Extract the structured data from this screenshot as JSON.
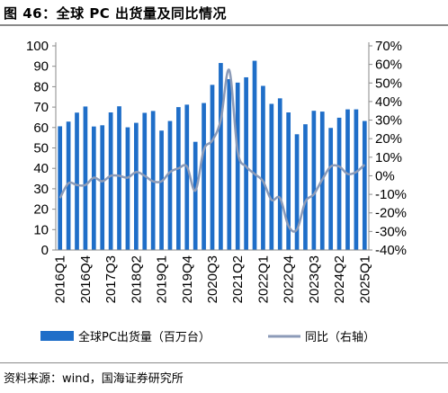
{
  "header": {
    "title": "图 46：全球 PC 出货量及同比情况"
  },
  "footer": {
    "source": "资料来源：wind，国海证券研究所"
  },
  "colors": {
    "bar": "#1f6ec8",
    "line": "#8c9bb8",
    "rule": "#8a8a8a"
  },
  "chart_data": {
    "type": "bar",
    "title": "",
    "xlabel": "",
    "ylabel": "",
    "ylim": [
      0,
      100
    ],
    "y2lim": [
      -40,
      70
    ],
    "y_ticks": [
      "0",
      "10",
      "20",
      "30",
      "40",
      "50",
      "60",
      "70",
      "80",
      "90",
      "100"
    ],
    "y2_ticks": [
      "-40%",
      "-30%",
      "-20%",
      "-10%",
      "0%",
      "10%",
      "20%",
      "30%",
      "40%",
      "50%",
      "60%",
      "70%"
    ],
    "x_tick_labels": [
      "2016Q1",
      "2016Q4",
      "2017Q3",
      "2018Q2",
      "2019Q1",
      "2019Q4",
      "2020Q3",
      "2021Q2",
      "2022Q1",
      "2022Q4",
      "2023Q3",
      "2024Q2",
      "2025Q1"
    ],
    "categories": [
      "2016Q1",
      "2016Q2",
      "2016Q3",
      "2016Q4",
      "2017Q1",
      "2017Q2",
      "2017Q3",
      "2017Q4",
      "2018Q1",
      "2018Q2",
      "2018Q3",
      "2018Q4",
      "2019Q1",
      "2019Q2",
      "2019Q3",
      "2019Q4",
      "2020Q1",
      "2020Q2",
      "2020Q3",
      "2020Q4",
      "2021Q1",
      "2021Q2",
      "2021Q3",
      "2021Q4",
      "2022Q1",
      "2022Q2",
      "2022Q3",
      "2022Q4",
      "2023Q1",
      "2023Q2",
      "2023Q3",
      "2023Q4",
      "2024Q1",
      "2024Q2",
      "2024Q3",
      "2024Q4",
      "2025Q1"
    ],
    "series": [
      {
        "name": "全球PC出货量（百万台）",
        "type": "bar",
        "axis": "left",
        "values": [
          60.6,
          62.9,
          67.3,
          70.3,
          60.5,
          61.1,
          67.4,
          70.4,
          60.1,
          62.3,
          67.2,
          68.1,
          58.5,
          63.2,
          70.0,
          71.2,
          53.0,
          72.0,
          80.9,
          91.6,
          83.7,
          82.0,
          84.6,
          92.7,
          80.4,
          71.6,
          74.3,
          67.4,
          56.7,
          61.6,
          68.2,
          67.8,
          59.8,
          64.8,
          68.9,
          68.9,
          63.2
        ]
      },
      {
        "name": "同比（右轴）",
        "type": "line",
        "axis": "right",
        "values": [
          -12,
          -4,
          -5,
          -5,
          -1,
          -3,
          0,
          0,
          -1,
          2,
          0,
          -3,
          -3,
          2,
          4,
          5,
          -8,
          14,
          19,
          30,
          57,
          13,
          5,
          1,
          -3,
          -13,
          -12,
          -27,
          -29,
          -14,
          -10,
          -2,
          5,
          5,
          1,
          2,
          6
        ]
      }
    ],
    "legend_position": "bottom",
    "grid": false
  }
}
